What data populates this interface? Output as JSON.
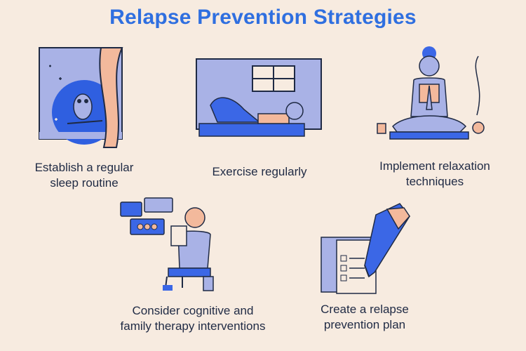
{
  "title": "Relapse Prevention Strategies",
  "colors": {
    "background": "#f7ebe0",
    "title_blue": "#2f6fe0",
    "illustration_blue": "#3b67e6",
    "lavender": "#a9b2e6",
    "peach": "#f3b99c",
    "outline": "#1f2a44"
  },
  "strategies": [
    {
      "icon": "owl-night-window-illustration",
      "lines": [
        "Establish a regular",
        "sleep routine"
      ]
    },
    {
      "icon": "exercise-illustration",
      "lines": [
        "Exercise regularly"
      ]
    },
    {
      "icon": "meditation-illustration",
      "lines": [
        "Implement relaxation",
        "techniques"
      ]
    },
    {
      "icon": "therapy-illustration",
      "lines": [
        "Consider cognitive and",
        "family therapy interventions"
      ]
    },
    {
      "icon": "plan-pencil-illustration",
      "lines": [
        "Create a relapse",
        "prevention plan"
      ]
    }
  ]
}
